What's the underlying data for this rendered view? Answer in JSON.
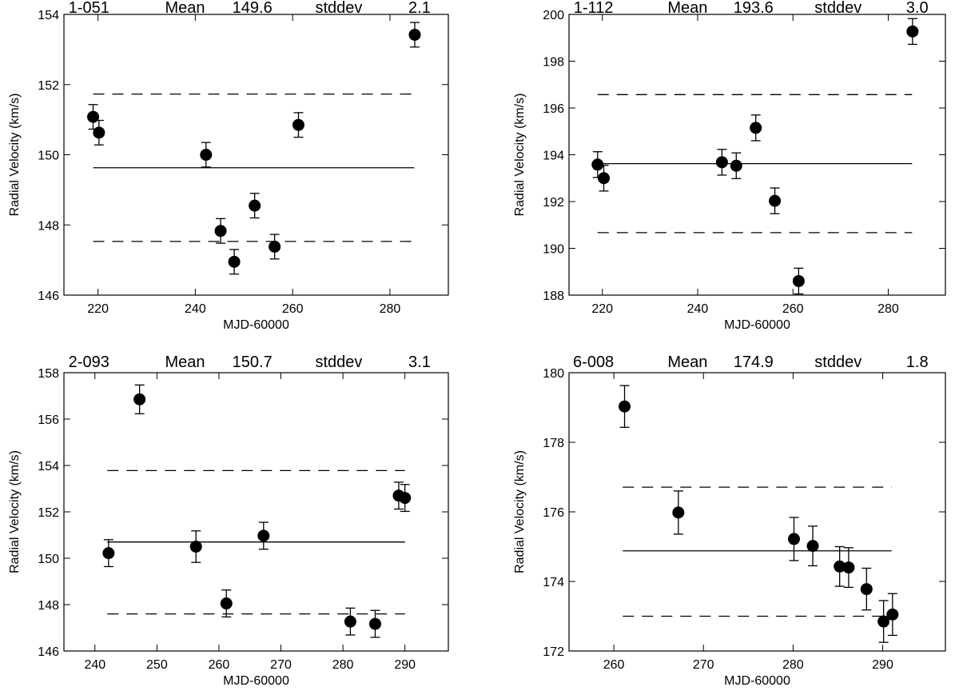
{
  "figure": "Radial velocity measurements of four stars",
  "chart_data": [
    {
      "type": "scatter",
      "star": "1-051",
      "mean_label": "Mean",
      "mean": "149.6",
      "stddev_label": "stddev",
      "stddev": "2.1",
      "xlabel": "MJD-60000",
      "ylabel": "Radial Velocity (km/s)",
      "xlim": [
        213,
        292
      ],
      "ylim": [
        146,
        154
      ],
      "xticks": [
        "220",
        "240",
        "260",
        "280"
      ],
      "yticks": [
        "146",
        "148",
        "150",
        "152",
        "154"
      ],
      "mean_line": {
        "value": 149.63,
        "x": [
          219,
          285
        ]
      },
      "sigma_lines": {
        "upper": 151.73,
        "lower": 147.53,
        "x": [
          219,
          285
        ]
      },
      "points": [
        {
          "x": 219.0,
          "y": 151.08,
          "err": 0.35
        },
        {
          "x": 220.2,
          "y": 150.63,
          "err": 0.35
        },
        {
          "x": 242.2,
          "y": 150.0,
          "err": 0.35
        },
        {
          "x": 245.2,
          "y": 147.83,
          "err": 0.35
        },
        {
          "x": 248.0,
          "y": 146.95,
          "err": 0.35
        },
        {
          "x": 252.2,
          "y": 148.55,
          "err": 0.35
        },
        {
          "x": 256.3,
          "y": 147.38,
          "err": 0.35
        },
        {
          "x": 261.2,
          "y": 150.85,
          "err": 0.35
        },
        {
          "x": 285.1,
          "y": 153.42,
          "err": 0.35
        }
      ]
    },
    {
      "type": "scatter",
      "star": "1-112",
      "mean_label": "Mean",
      "mean": "193.6",
      "stddev_label": "stddev",
      "stddev": "3.0",
      "xlabel": "MJD-60000",
      "ylabel": "Radial Velocity (km/s)",
      "xlim": [
        213,
        292
      ],
      "ylim": [
        188,
        200
      ],
      "xticks": [
        "220",
        "240",
        "260",
        "280"
      ],
      "yticks": [
        "188",
        "190",
        "192",
        "194",
        "196",
        "198",
        "200"
      ],
      "mean_line": {
        "value": 193.62,
        "x": [
          219,
          285
        ]
      },
      "sigma_lines": {
        "upper": 196.57,
        "lower": 190.67,
        "x": [
          219,
          285
        ]
      },
      "points": [
        {
          "x": 219.0,
          "y": 193.58,
          "err": 0.55
        },
        {
          "x": 220.3,
          "y": 193.0,
          "err": 0.55
        },
        {
          "x": 245.1,
          "y": 193.68,
          "err": 0.55
        },
        {
          "x": 248.1,
          "y": 193.53,
          "err": 0.55
        },
        {
          "x": 252.2,
          "y": 195.15,
          "err": 0.55
        },
        {
          "x": 256.2,
          "y": 192.03,
          "err": 0.55
        },
        {
          "x": 261.2,
          "y": 188.6,
          "err": 0.55
        },
        {
          "x": 285.1,
          "y": 199.27,
          "err": 0.55
        }
      ]
    },
    {
      "type": "scatter",
      "star": "2-093",
      "mean_label": "Mean",
      "mean": "150.7",
      "stddev_label": "stddev",
      "stddev": "3.1",
      "xlabel": "MJD-60000",
      "ylabel": "Radial Velocity (km/s)",
      "xlim": [
        235,
        297
      ],
      "ylim": [
        146,
        158
      ],
      "xticks": [
        "240",
        "250",
        "260",
        "270",
        "280",
        "290"
      ],
      "yticks": [
        "146",
        "148",
        "150",
        "152",
        "154",
        "156",
        "158"
      ],
      "mean_line": {
        "value": 150.7,
        "x": [
          242,
          290
        ]
      },
      "sigma_lines": {
        "upper": 153.78,
        "lower": 147.6,
        "x": [
          242,
          290
        ]
      },
      "points": [
        {
          "x": 242.2,
          "y": 150.22,
          "err": 0.58
        },
        {
          "x": 247.2,
          "y": 156.85,
          "err": 0.62
        },
        {
          "x": 256.3,
          "y": 150.5,
          "err": 0.68
        },
        {
          "x": 261.2,
          "y": 148.05,
          "err": 0.58
        },
        {
          "x": 267.2,
          "y": 150.97,
          "err": 0.58
        },
        {
          "x": 281.2,
          "y": 147.27,
          "err": 0.58
        },
        {
          "x": 285.2,
          "y": 147.17,
          "err": 0.58
        },
        {
          "x": 289.0,
          "y": 152.7,
          "err": 0.58
        },
        {
          "x": 290.0,
          "y": 152.6,
          "err": 0.58
        }
      ]
    },
    {
      "type": "scatter",
      "star": "6-008",
      "mean_label": "Mean",
      "mean": "174.9",
      "stddev_label": "stddev",
      "stddev": "1.8",
      "xlabel": "MJD-60000",
      "ylabel": "Radial Velocity (km/s)",
      "xlim": [
        255,
        297
      ],
      "ylim": [
        172,
        180
      ],
      "xticks": [
        "260",
        "270",
        "280",
        "290"
      ],
      "yticks": [
        "172",
        "174",
        "176",
        "178",
        "180"
      ],
      "mean_line": {
        "value": 174.88,
        "x": [
          261,
          291
        ]
      },
      "sigma_lines": {
        "upper": 176.71,
        "lower": 173.0,
        "x": [
          261,
          291
        ]
      },
      "points": [
        {
          "x": 261.2,
          "y": 179.03,
          "err": 0.6
        },
        {
          "x": 267.2,
          "y": 175.98,
          "err": 0.62
        },
        {
          "x": 280.1,
          "y": 175.22,
          "err": 0.62
        },
        {
          "x": 282.2,
          "y": 175.02,
          "err": 0.57
        },
        {
          "x": 285.2,
          "y": 174.43,
          "err": 0.57
        },
        {
          "x": 286.2,
          "y": 174.4,
          "err": 0.57
        },
        {
          "x": 288.2,
          "y": 173.78,
          "err": 0.6
        },
        {
          "x": 290.1,
          "y": 172.85,
          "err": 0.6
        },
        {
          "x": 291.1,
          "y": 173.05,
          "err": 0.6
        }
      ]
    }
  ]
}
